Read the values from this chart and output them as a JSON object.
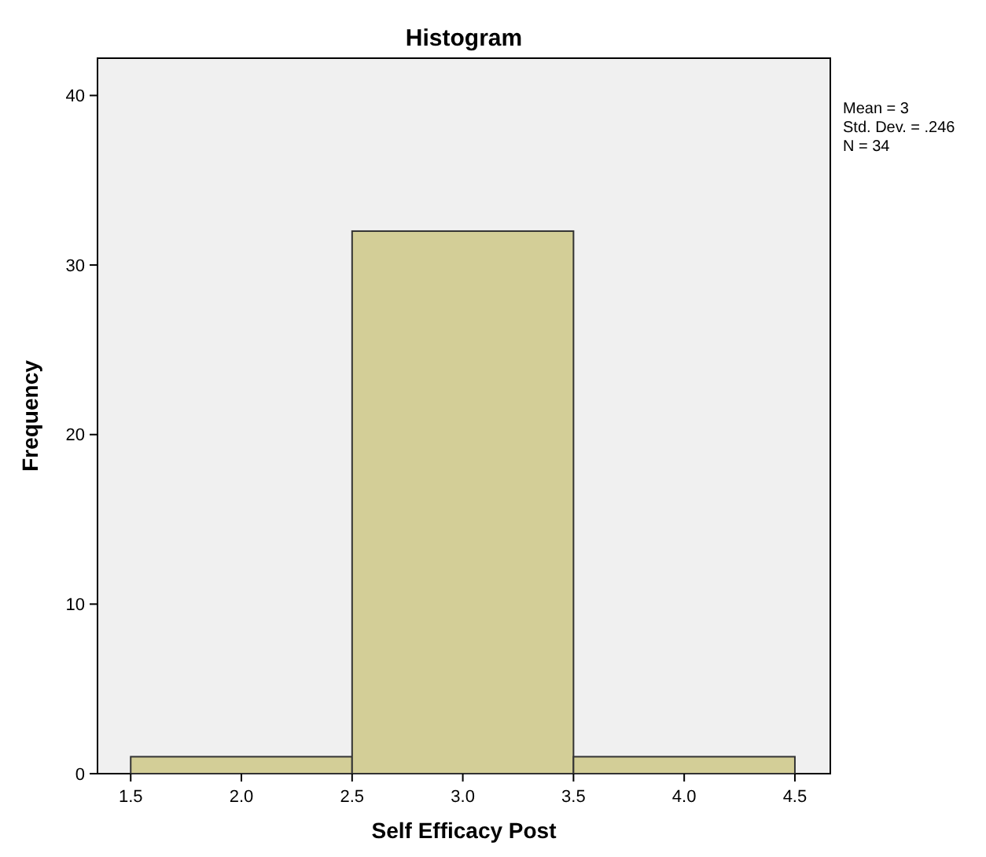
{
  "chart_data": {
    "type": "histogram",
    "title": "Histogram",
    "xlabel": "Self Efficacy Post",
    "ylabel": "Frequency",
    "bins": [
      1.5,
      2.5,
      3.5,
      4.5
    ],
    "values": [
      1,
      32,
      1
    ],
    "color": "#d3ce97",
    "xlim": [
      1.35,
      4.66
    ],
    "xticks": [
      1.5,
      {
        "value": 2,
        "label": "2.0"
      },
      2.5,
      {
        "value": 3,
        "label": "3.0"
      },
      3.5,
      {
        "value": 4,
        "label": "4.0"
      },
      4.5
    ],
    "ylim": [
      0,
      42.2
    ],
    "yticks": [
      0,
      10,
      20,
      30,
      40
    ],
    "grid": false,
    "annotations": [
      "Mean = 3",
      "Std. Dev. = .246",
      "N = 34"
    ]
  }
}
